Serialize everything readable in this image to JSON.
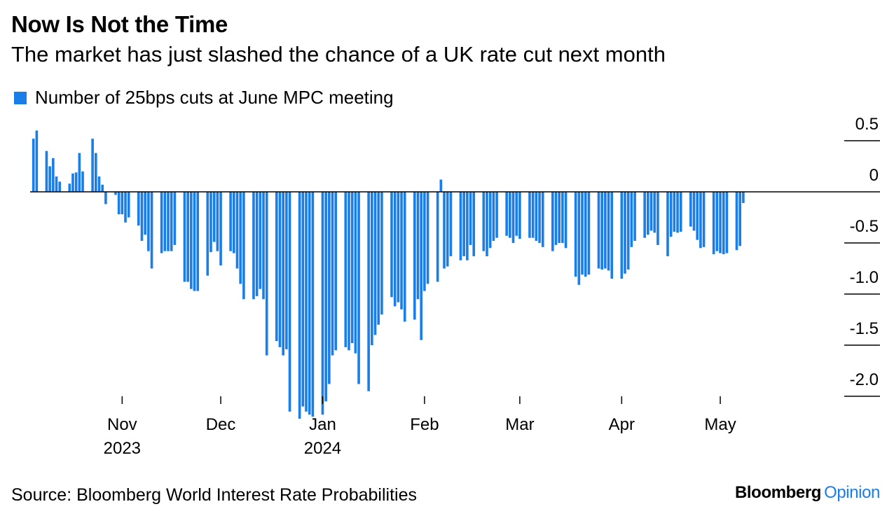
{
  "header": {
    "title": "Now Is Not the Time",
    "subtitle": "The market has just slashed the chance of a UK rate cut next month"
  },
  "footer": {
    "source": "Source: Bloomberg World Interest Rate Probabilities",
    "brand_primary": "Bloomberg",
    "brand_secondary": "Opinion"
  },
  "colors": {
    "bar": "#1a7ee8",
    "axis": "#000000",
    "text": "#000000"
  },
  "chart_data": {
    "type": "bar",
    "title": "Now Is Not the Time",
    "subtitle": "The market has just slashed the chance of a UK rate cut next month",
    "legend": [
      "Number of 25bps cuts at June MPC meeting"
    ],
    "legend_position": "top-left",
    "y_axis_position": "right",
    "grid": false,
    "ylim": [
      -2.2,
      0.6
    ],
    "y_ticks": [
      0.5,
      0,
      -0.5,
      -1.0,
      -1.5,
      -2.0
    ],
    "y_tick_labels": [
      "0.5",
      "0",
      "-0.5",
      "-1.0",
      "-1.5",
      "-2.0"
    ],
    "x_range": [
      "2023-10-04",
      "2024-05-27"
    ],
    "x_ticks": [
      {
        "date": "2023-11-01",
        "label": "Nov",
        "sublabel": "2023"
      },
      {
        "date": "2023-12-01",
        "label": "Dec",
        "sublabel": ""
      },
      {
        "date": "2024-01-01",
        "label": "Jan",
        "sublabel": "2024"
      },
      {
        "date": "2024-02-01",
        "label": "Feb",
        "sublabel": ""
      },
      {
        "date": "2024-03-01",
        "label": "Mar",
        "sublabel": ""
      },
      {
        "date": "2024-04-01",
        "label": "Apr",
        "sublabel": ""
      },
      {
        "date": "2024-05-01",
        "label": "May",
        "sublabel": ""
      }
    ],
    "series": [
      {
        "name": "Number of 25bps cuts at June MPC meeting",
        "start_date": "2023-10-05",
        "frequency": "business-day",
        "values": [
          0.52,
          0.6,
          0.4,
          0.25,
          0.33,
          0.15,
          0.1,
          0.08,
          0.18,
          0.19,
          0.38,
          0.2,
          0.52,
          0.38,
          0.15,
          0.07,
          -0.12,
          -0.03,
          -0.22,
          -0.22,
          -0.3,
          -0.25,
          -0.33,
          -0.48,
          -0.42,
          -0.58,
          -0.75,
          -0.6,
          -0.58,
          -0.58,
          -0.58,
          -0.52,
          -0.88,
          -0.88,
          -0.95,
          -0.97,
          -0.97,
          -0.82,
          -0.59,
          -0.49,
          -0.58,
          -0.72,
          -0.58,
          -0.6,
          -0.75,
          -0.9,
          -1.05,
          -1.05,
          -1.02,
          -0.95,
          -1.05,
          -1.6,
          -1.46,
          -1.52,
          -1.6,
          -1.54,
          -2.15,
          -2.22,
          -2.1,
          -2.15,
          -2.18,
          -2.2,
          -2.18,
          -2.05,
          -1.88,
          -1.6,
          -1.55,
          -1.52,
          -1.55,
          -1.48,
          -1.58,
          -1.88,
          -1.95,
          -1.5,
          -1.4,
          -1.3,
          -1.2,
          -1.03,
          -1.12,
          -1.08,
          -1.15,
          -1.27,
          -1.25,
          -1.05,
          -1.45,
          -0.97,
          -0.9,
          -0.88,
          0.12,
          -0.75,
          -0.73,
          -0.63,
          -0.67,
          -0.63,
          -0.67,
          -0.52,
          -0.63,
          -0.58,
          -0.63,
          -0.55,
          -0.48,
          -0.45,
          -0.43,
          -0.45,
          -0.5,
          -0.43,
          -0.46,
          -0.45,
          -0.45,
          -0.48,
          -0.5,
          -0.54,
          -0.58,
          -0.52,
          -0.5,
          -0.5,
          -0.55,
          -0.83,
          -0.91,
          -0.81,
          -0.83,
          -0.81,
          -0.75,
          -0.76,
          -0.75,
          -0.77,
          -0.85,
          -0.85,
          -0.8,
          -0.76,
          -0.54,
          -0.48,
          -0.45,
          -0.42,
          -0.38,
          -0.4,
          -0.52,
          -0.63,
          -0.44,
          -0.39,
          -0.4,
          -0.39,
          -0.34,
          -0.38,
          -0.47,
          -0.55,
          -0.54,
          -0.61,
          -0.58,
          -0.6,
          -0.61,
          -0.6,
          -0.57,
          -0.53,
          -0.11
        ]
      }
    ]
  }
}
